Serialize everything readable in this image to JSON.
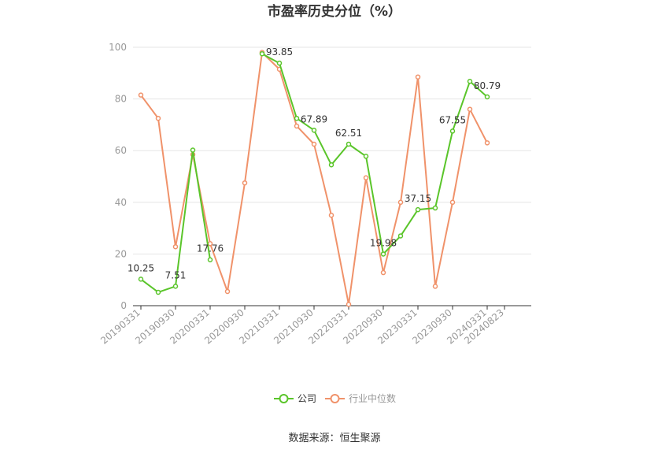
{
  "chart_data": {
    "type": "line",
    "title": "市盈率历史分位（%）",
    "source": "数据来源：恒生聚源",
    "ylim": [
      0,
      100
    ],
    "yticks": [
      0,
      20,
      40,
      60,
      80,
      100
    ],
    "x_tick_labels": [
      "20190331",
      "20190930",
      "20200331",
      "20200930",
      "20210331",
      "20210930",
      "20220331",
      "20220930",
      "20230331",
      "20230930",
      "20240331",
      "20240823"
    ],
    "x": [
      "20190331",
      "20190630",
      "20190930",
      "20191231",
      "20200331",
      "20200630",
      "20200930",
      "20201231",
      "20210331",
      "20210630",
      "20210930",
      "20211231",
      "20220331",
      "20220630",
      "20220930",
      "20221231",
      "20230331",
      "20230630",
      "20230930",
      "20231231",
      "20240331",
      "20240823"
    ],
    "series": [
      {
        "name": "公司",
        "color": "#5ac52a",
        "values": [
          10.25,
          5.2,
          7.51,
          60.2,
          17.76,
          null,
          null,
          97.5,
          93.85,
          72.5,
          67.89,
          54.5,
          62.51,
          57.8,
          19.98,
          27.0,
          37.15,
          37.8,
          67.55,
          86.8,
          80.79,
          null
        ],
        "labels": {
          "0": "10.25",
          "2": "7.51",
          "4": "17.76",
          "8": "93.85",
          "10": "67.89",
          "12": "62.51",
          "14": "19.98",
          "16": "37.15",
          "18": "67.55",
          "20": "80.79"
        }
      },
      {
        "name": "行业中位数",
        "color": "#f0926a",
        "values": [
          81.5,
          72.5,
          22.8,
          58.5,
          24.0,
          5.5,
          47.5,
          98.0,
          91.5,
          69.5,
          62.5,
          35.0,
          0.5,
          49.5,
          12.8,
          40.0,
          88.5,
          7.5,
          40.0,
          76.0,
          63.0,
          null
        ]
      }
    ],
    "legend_position": "bottom-center",
    "grid": true
  }
}
